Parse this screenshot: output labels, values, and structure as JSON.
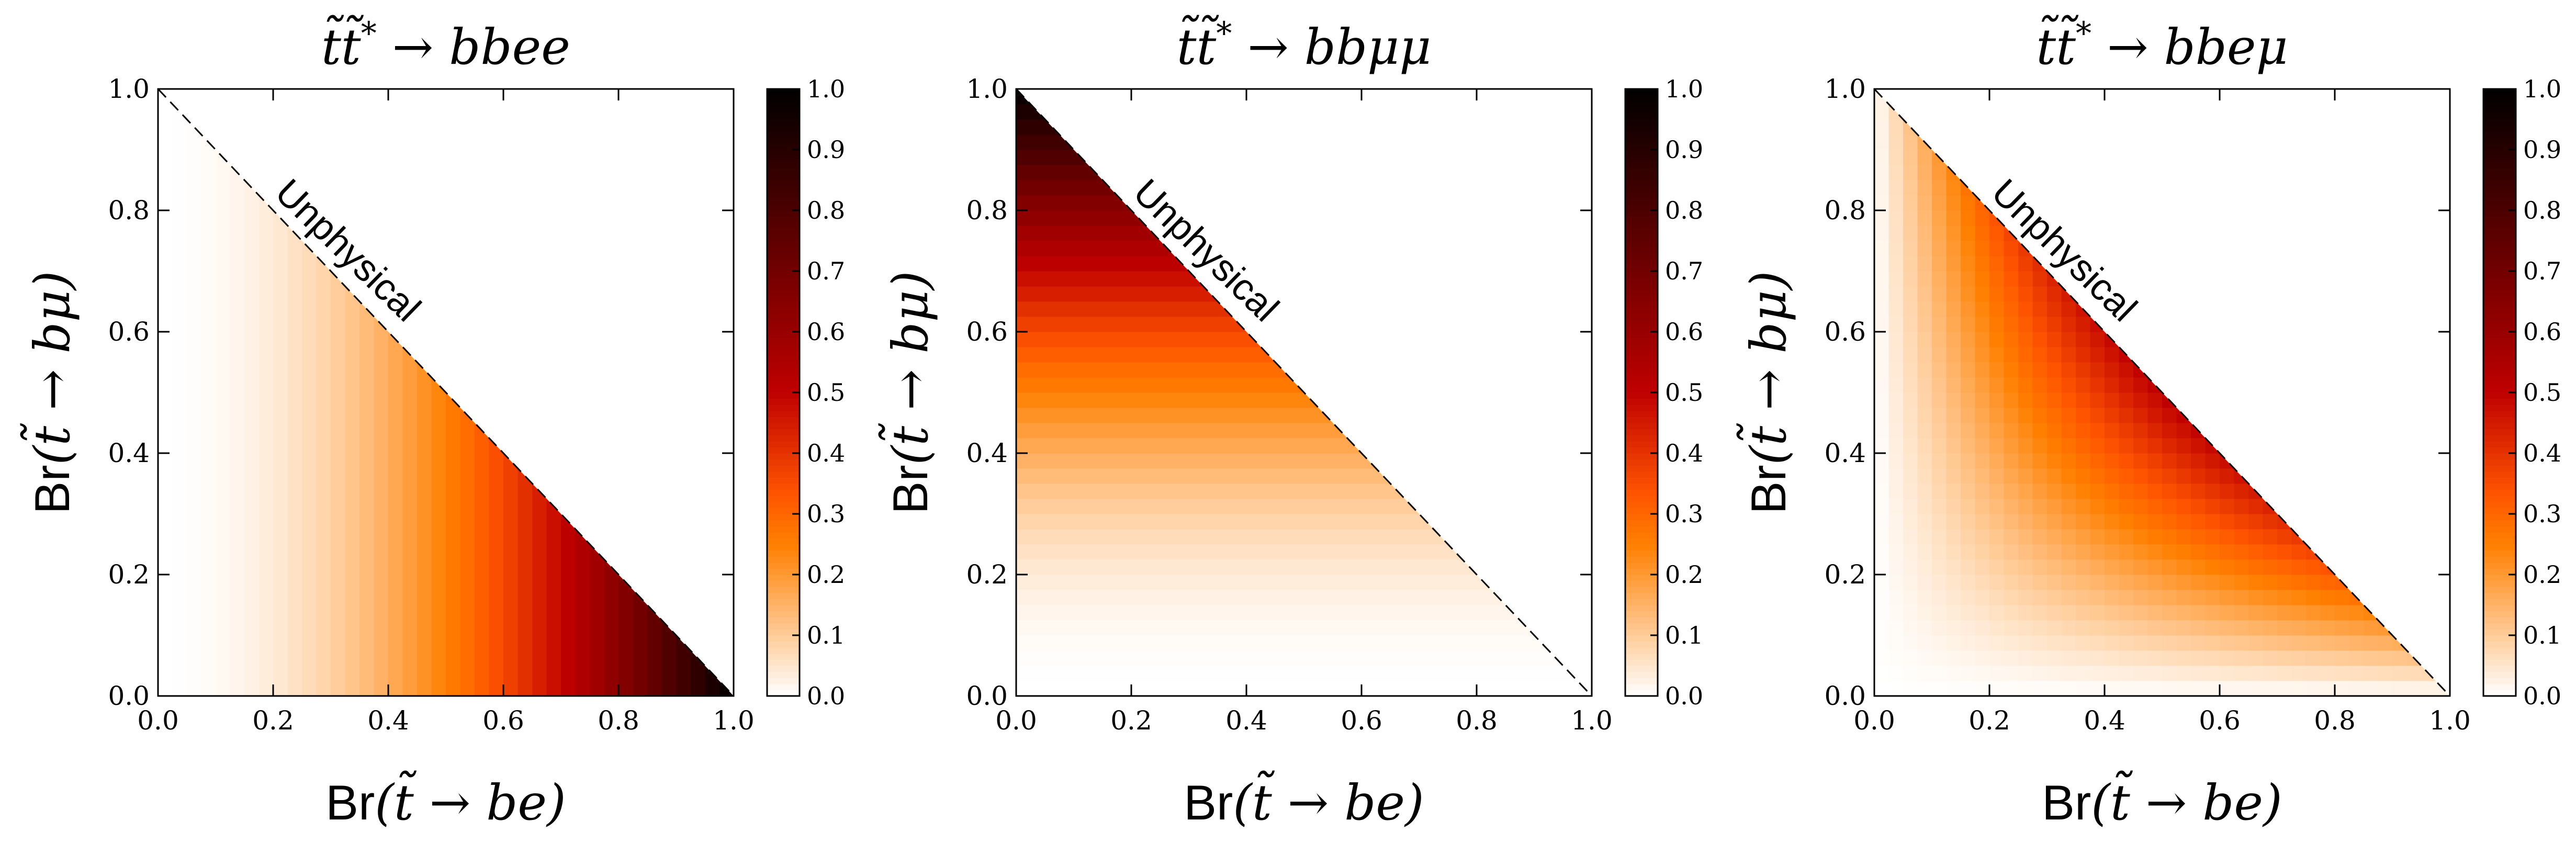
{
  "chart_data": [
    {
      "type": "heatmap",
      "title": "t̃t̃* → bbee",
      "title_parts": {
        "base": "t̃t̃",
        "sup": "*",
        "rest": " → bbee"
      },
      "xlabel": "Br(t̃ → be)",
      "ylabel": "Br(t̃ → bμ)",
      "xlabel_parts": {
        "prefix": "Br",
        "math": "(t̃ → be)"
      },
      "ylabel_parts": {
        "prefix": "Br",
        "math": "(t̃ → bμ)"
      },
      "xlim": [
        0,
        1
      ],
      "ylim": [
        0,
        1
      ],
      "x_ticks": [
        "0.0",
        "0.2",
        "0.4",
        "0.6",
        "0.8",
        "1.0"
      ],
      "y_ticks": [
        "0.0",
        "0.2",
        "0.4",
        "0.6",
        "0.8",
        "1.0"
      ],
      "value_function": "x^2",
      "annotation": "Unphysical",
      "diagonal": "dashed line from (0,1) to (1,0)",
      "colorbar": {
        "range": [
          0,
          1
        ],
        "ticks": [
          "0.0",
          "0.1",
          "0.2",
          "0.3",
          "0.4",
          "0.5",
          "0.6",
          "0.7",
          "0.8",
          "0.9",
          "1.0"
        ],
        "colormap": "gist_heat_r"
      }
    },
    {
      "type": "heatmap",
      "title": "t̃t̃* → bbμμ",
      "title_parts": {
        "base": "t̃t̃",
        "sup": "*",
        "rest": " → bbμμ"
      },
      "xlabel": "Br(t̃ → be)",
      "ylabel": "Br(t̃ → bμ)",
      "xlabel_parts": {
        "prefix": "Br",
        "math": "(t̃ → be)"
      },
      "ylabel_parts": {
        "prefix": "Br",
        "math": "(t̃ → bμ)"
      },
      "xlim": [
        0,
        1
      ],
      "ylim": [
        0,
        1
      ],
      "x_ticks": [
        "0.0",
        "0.2",
        "0.4",
        "0.6",
        "0.8",
        "1.0"
      ],
      "y_ticks": [
        "0.0",
        "0.2",
        "0.4",
        "0.6",
        "0.8",
        "1.0"
      ],
      "value_function": "y^2",
      "annotation": "Unphysical",
      "diagonal": "dashed line from (0,1) to (1,0)",
      "colorbar": {
        "range": [
          0,
          1
        ],
        "ticks": [
          "0.0",
          "0.1",
          "0.2",
          "0.3",
          "0.4",
          "0.5",
          "0.6",
          "0.7",
          "0.8",
          "0.9",
          "1.0"
        ],
        "colormap": "gist_heat_r"
      }
    },
    {
      "type": "heatmap",
      "title": "t̃t̃* → bbeμ",
      "title_parts": {
        "base": "t̃t̃",
        "sup": "*",
        "rest": " → bbeμ"
      },
      "xlabel": "Br(t̃ → be)",
      "ylabel": "Br(t̃ → bμ)",
      "xlabel_parts": {
        "prefix": "Br",
        "math": "(t̃ → be)"
      },
      "ylabel_parts": {
        "prefix": "Br",
        "math": "(t̃ → bμ)"
      },
      "xlim": [
        0,
        1
      ],
      "ylim": [
        0,
        1
      ],
      "x_ticks": [
        "0.0",
        "0.2",
        "0.4",
        "0.6",
        "0.8",
        "1.0"
      ],
      "y_ticks": [
        "0.0",
        "0.2",
        "0.4",
        "0.6",
        "0.8",
        "1.0"
      ],
      "value_function": "2xy",
      "annotation": "Unphysical",
      "diagonal": "dashed line from (0,1) to (1,0)",
      "colorbar": {
        "range": [
          0,
          1
        ],
        "ticks": [
          "0.0",
          "0.1",
          "0.2",
          "0.3",
          "0.4",
          "0.5",
          "0.6",
          "0.7",
          "0.8",
          "0.9",
          "1.0"
        ],
        "colormap": "gist_heat_r"
      }
    }
  ]
}
